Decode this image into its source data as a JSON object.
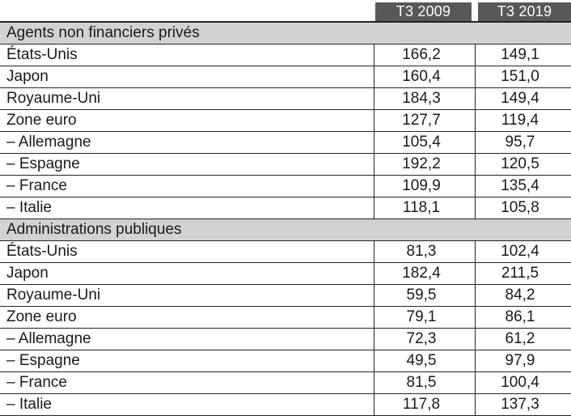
{
  "colors": {
    "header_bg": "#58585a",
    "header_text": "#fdfdfd",
    "section_bg": "#d2d2d2",
    "border": "#232323",
    "text": "#1a1a1a"
  },
  "chart_data": {
    "type": "table",
    "columns": [
      "T3 2009",
      "T3 2019"
    ],
    "sections": [
      {
        "title": "Agents non financiers privés",
        "rows": [
          {
            "label": "États-Unis",
            "v2009": "166,2",
            "v2019": "149,1"
          },
          {
            "label": "Japon",
            "v2009": "160,4",
            "v2019": "151,0"
          },
          {
            "label": "Royaume-Uni",
            "v2009": "184,3",
            "v2019": "149,4"
          },
          {
            "label": "Zone euro",
            "v2009": "127,7",
            "v2019": "119,4"
          },
          {
            "label": "– Allemagne",
            "v2009": "105,4",
            "v2019": "95,7"
          },
          {
            "label": "– Espagne",
            "v2009": "192,2",
            "v2019": "120,5"
          },
          {
            "label": "– France",
            "v2009": "109,9",
            "v2019": "135,4"
          },
          {
            "label": "– Italie",
            "v2009": "118,1",
            "v2019": "105,8"
          }
        ]
      },
      {
        "title": "Administrations publiques",
        "rows": [
          {
            "label": "États-Unis",
            "v2009": "81,3",
            "v2019": "102,4"
          },
          {
            "label": "Japon",
            "v2009": "182,4",
            "v2019": "211,5"
          },
          {
            "label": "Royaume-Uni",
            "v2009": "59,5",
            "v2019": "84,2"
          },
          {
            "label": "Zone euro",
            "v2009": "79,1",
            "v2019": "86,1"
          },
          {
            "label": "– Allemagne",
            "v2009": "72,3",
            "v2019": "61,2"
          },
          {
            "label": "– Espagne",
            "v2009": "49,5",
            "v2019": "97,9"
          },
          {
            "label": "– France",
            "v2009": "81,5",
            "v2019": "100,4"
          },
          {
            "label": "– Italie",
            "v2009": "117,8",
            "v2019": "137,3"
          }
        ]
      }
    ]
  }
}
